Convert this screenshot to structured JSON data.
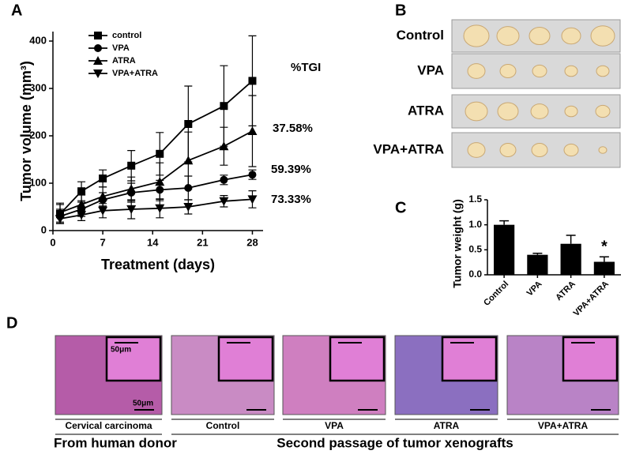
{
  "panel_labels": [
    "A",
    "B",
    "C",
    "D"
  ],
  "chart_data": [
    {
      "type": "line",
      "ylabel": "Tumor volume (mm³)",
      "xlabel": "Treatment (days)",
      "x": [
        1,
        4,
        7,
        11,
        15,
        19,
        24,
        28
      ],
      "xlim": [
        0,
        29.5
      ],
      "xticks": [
        0,
        7,
        14,
        21,
        28
      ],
      "ylim": [
        0,
        420
      ],
      "yticks": [
        0,
        100,
        200,
        300,
        400
      ],
      "series": [
        {
          "name": "control",
          "marker": "square",
          "color": "#000000",
          "values": [
            35,
            83,
            110,
            137,
            162,
            225,
            263,
            316
          ],
          "errors": [
            20,
            20,
            18,
            32,
            45,
            80,
            85,
            95
          ]
        },
        {
          "name": "VPA",
          "marker": "circle",
          "color": "#000000",
          "values": [
            30,
            45,
            65,
            80,
            86,
            90,
            107,
            118
          ],
          "errors": [
            15,
            15,
            15,
            20,
            20,
            25,
            10,
            10
          ]
        },
        {
          "name": "ATRA",
          "marker": "triangle-up",
          "color": "#000000",
          "values": [
            38,
            55,
            72,
            88,
            103,
            148,
            178,
            210
          ],
          "errors": [
            20,
            20,
            20,
            25,
            40,
            60,
            40,
            75
          ]
        },
        {
          "name": "VPA+ATRA",
          "marker": "triangle-down",
          "color": "#000000",
          "values": [
            25,
            33,
            42,
            45,
            47,
            50,
            62,
            66
          ],
          "errors": [
            10,
            12,
            15,
            20,
            20,
            15,
            12,
            18
          ]
        }
      ],
      "annotations": [
        "%TGI",
        "37.58%",
        "59.39%",
        "73.33%"
      ]
    },
    {
      "type": "bar",
      "ylabel": "Tumor weight (g)",
      "categories": [
        "Control",
        "VPA",
        "ATRA",
        "VPA+ATRA"
      ],
      "values": [
        1.0,
        0.4,
        0.62,
        0.26
      ],
      "errors": [
        0.08,
        0.03,
        0.17,
        0.1
      ],
      "color": "#000000",
      "ylim": [
        0,
        1.5
      ],
      "yticks": [
        {
          "value": 0,
          "label": "0.0"
        },
        0.5,
        {
          "value": 1,
          "label": "1.0"
        },
        1.5
      ],
      "significance": "*"
    }
  ],
  "photos": {
    "rows": [
      "Control",
      "VPA",
      "ATRA",
      "VPA+ATRA"
    ]
  },
  "histology": {
    "scale_label": "50μm",
    "panels": [
      "Cervical carcinoma",
      "Control",
      "VPA",
      "ATRA",
      "VPA+ATRA"
    ],
    "groups": [
      "From human donor",
      "Second passage of tumor xenografts"
    ]
  }
}
